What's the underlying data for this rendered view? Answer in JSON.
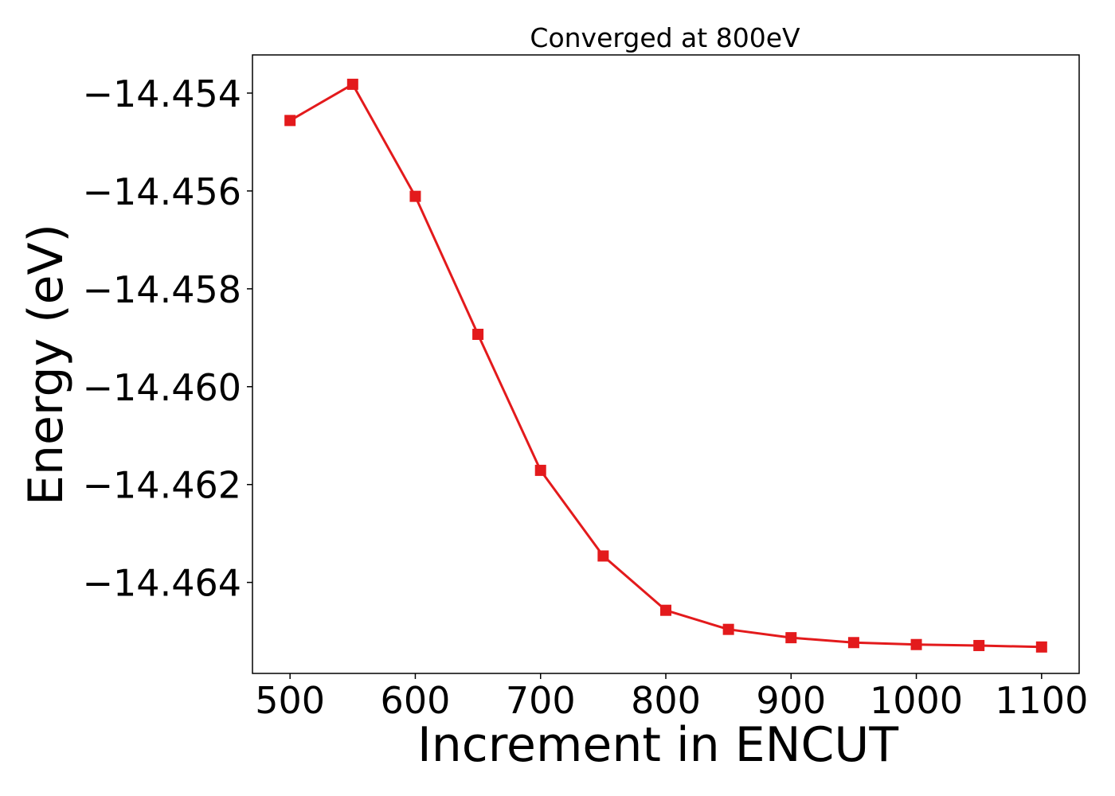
{
  "chart_data": {
    "type": "line",
    "title": "Converged at 800eV",
    "xlabel": "Increment in ENCUT",
    "ylabel": "Energy (eV)",
    "x": [
      500,
      550,
      600,
      650,
      700,
      750,
      800,
      850,
      900,
      950,
      1000,
      1050,
      1100
    ],
    "series": [
      {
        "values": [
          -14.45456,
          -14.45382,
          -14.45611,
          -14.45893,
          -14.46171,
          -14.46346,
          -14.46457,
          -14.46496,
          -14.46513,
          -14.46523,
          -14.46527,
          -14.46529,
          -14.46532
        ],
        "color": "#e31a1c",
        "marker": "square"
      }
    ],
    "xticks": [
      500,
      600,
      700,
      800,
      900,
      1000,
      1100
    ],
    "yticks": [
      -14.454,
      -14.456,
      -14.458,
      -14.46,
      -14.462,
      -14.464
    ],
    "xtick_labels": [
      "500",
      "600",
      "700",
      "800",
      "900",
      "1000",
      "1100"
    ],
    "ytick_labels": [
      "−14.454",
      "−14.456",
      "−14.458",
      "−14.460",
      "−14.462",
      "−14.464"
    ],
    "xlim": [
      470,
      1130
    ],
    "ylim": [
      -14.46586,
      -14.45322
    ],
    "grid": false,
    "legend": "none"
  }
}
